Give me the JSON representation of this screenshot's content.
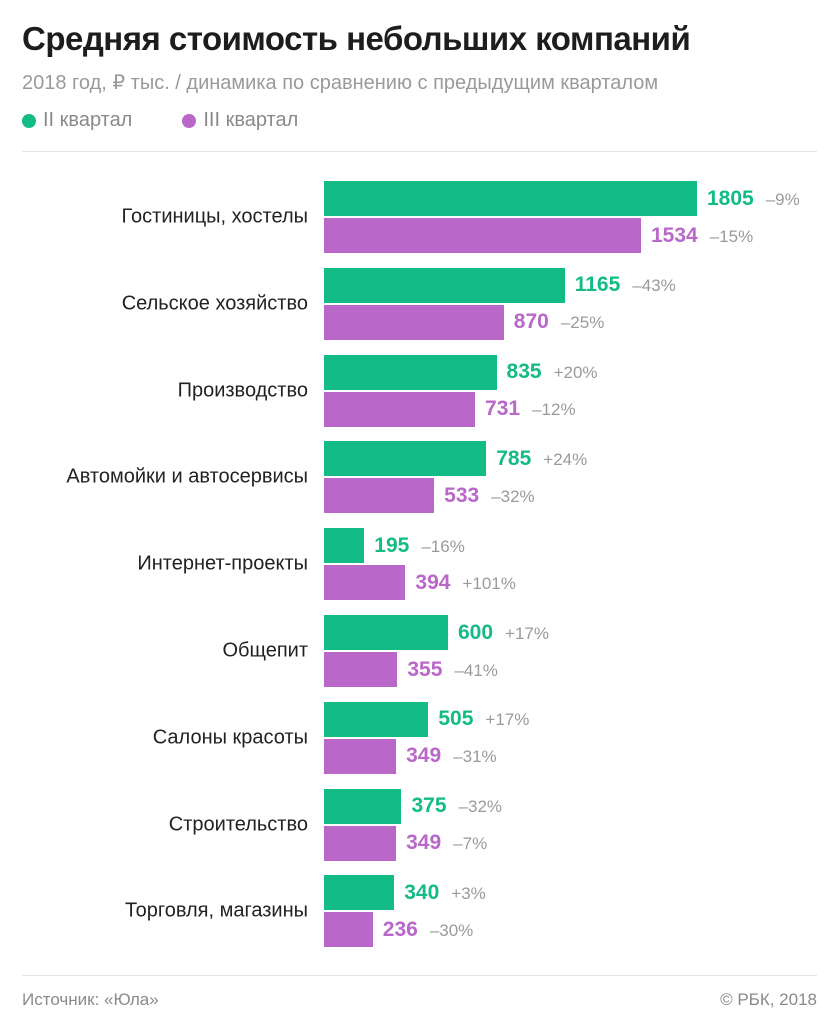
{
  "chart_data": {
    "type": "bar",
    "orientation": "horizontal",
    "title": "Средняя стоимость небольших компаний",
    "subtitle": "2018 год, ₽ тыс. / динамика по сравнению с предыдущим кварталом",
    "legend_position": "top-left",
    "categories": [
      "Гостиницы, хостелы",
      "Сельское хозяйство",
      "Производство",
      "Автомойки и автосервисы",
      "Интернет-проекты",
      "Общепит",
      "Салоны красоты",
      "Строительство",
      "Торговля, магазины"
    ],
    "series": [
      {
        "name": "II квартал",
        "color": "#13bb86",
        "values": [
          1805,
          1165,
          835,
          785,
          195,
          600,
          505,
          375,
          340
        ],
        "changes": [
          "–9%",
          "–43%",
          "+20%",
          "+24%",
          "–16%",
          "+17%",
          "+17%",
          "–32%",
          "+3%"
        ]
      },
      {
        "name": "III квартал",
        "color": "#b967c9",
        "values": [
          1534,
          870,
          731,
          533,
          394,
          355,
          349,
          349,
          236
        ],
        "changes": [
          "–15%",
          "–25%",
          "–12%",
          "–32%",
          "+101%",
          "–41%",
          "–31%",
          "–7%",
          "–30%"
        ]
      }
    ],
    "xlim": [
      0,
      1805
    ],
    "grid": false
  },
  "footer": {
    "source": "Источник: «Юла»",
    "copyright": "© РБК, 2018"
  }
}
